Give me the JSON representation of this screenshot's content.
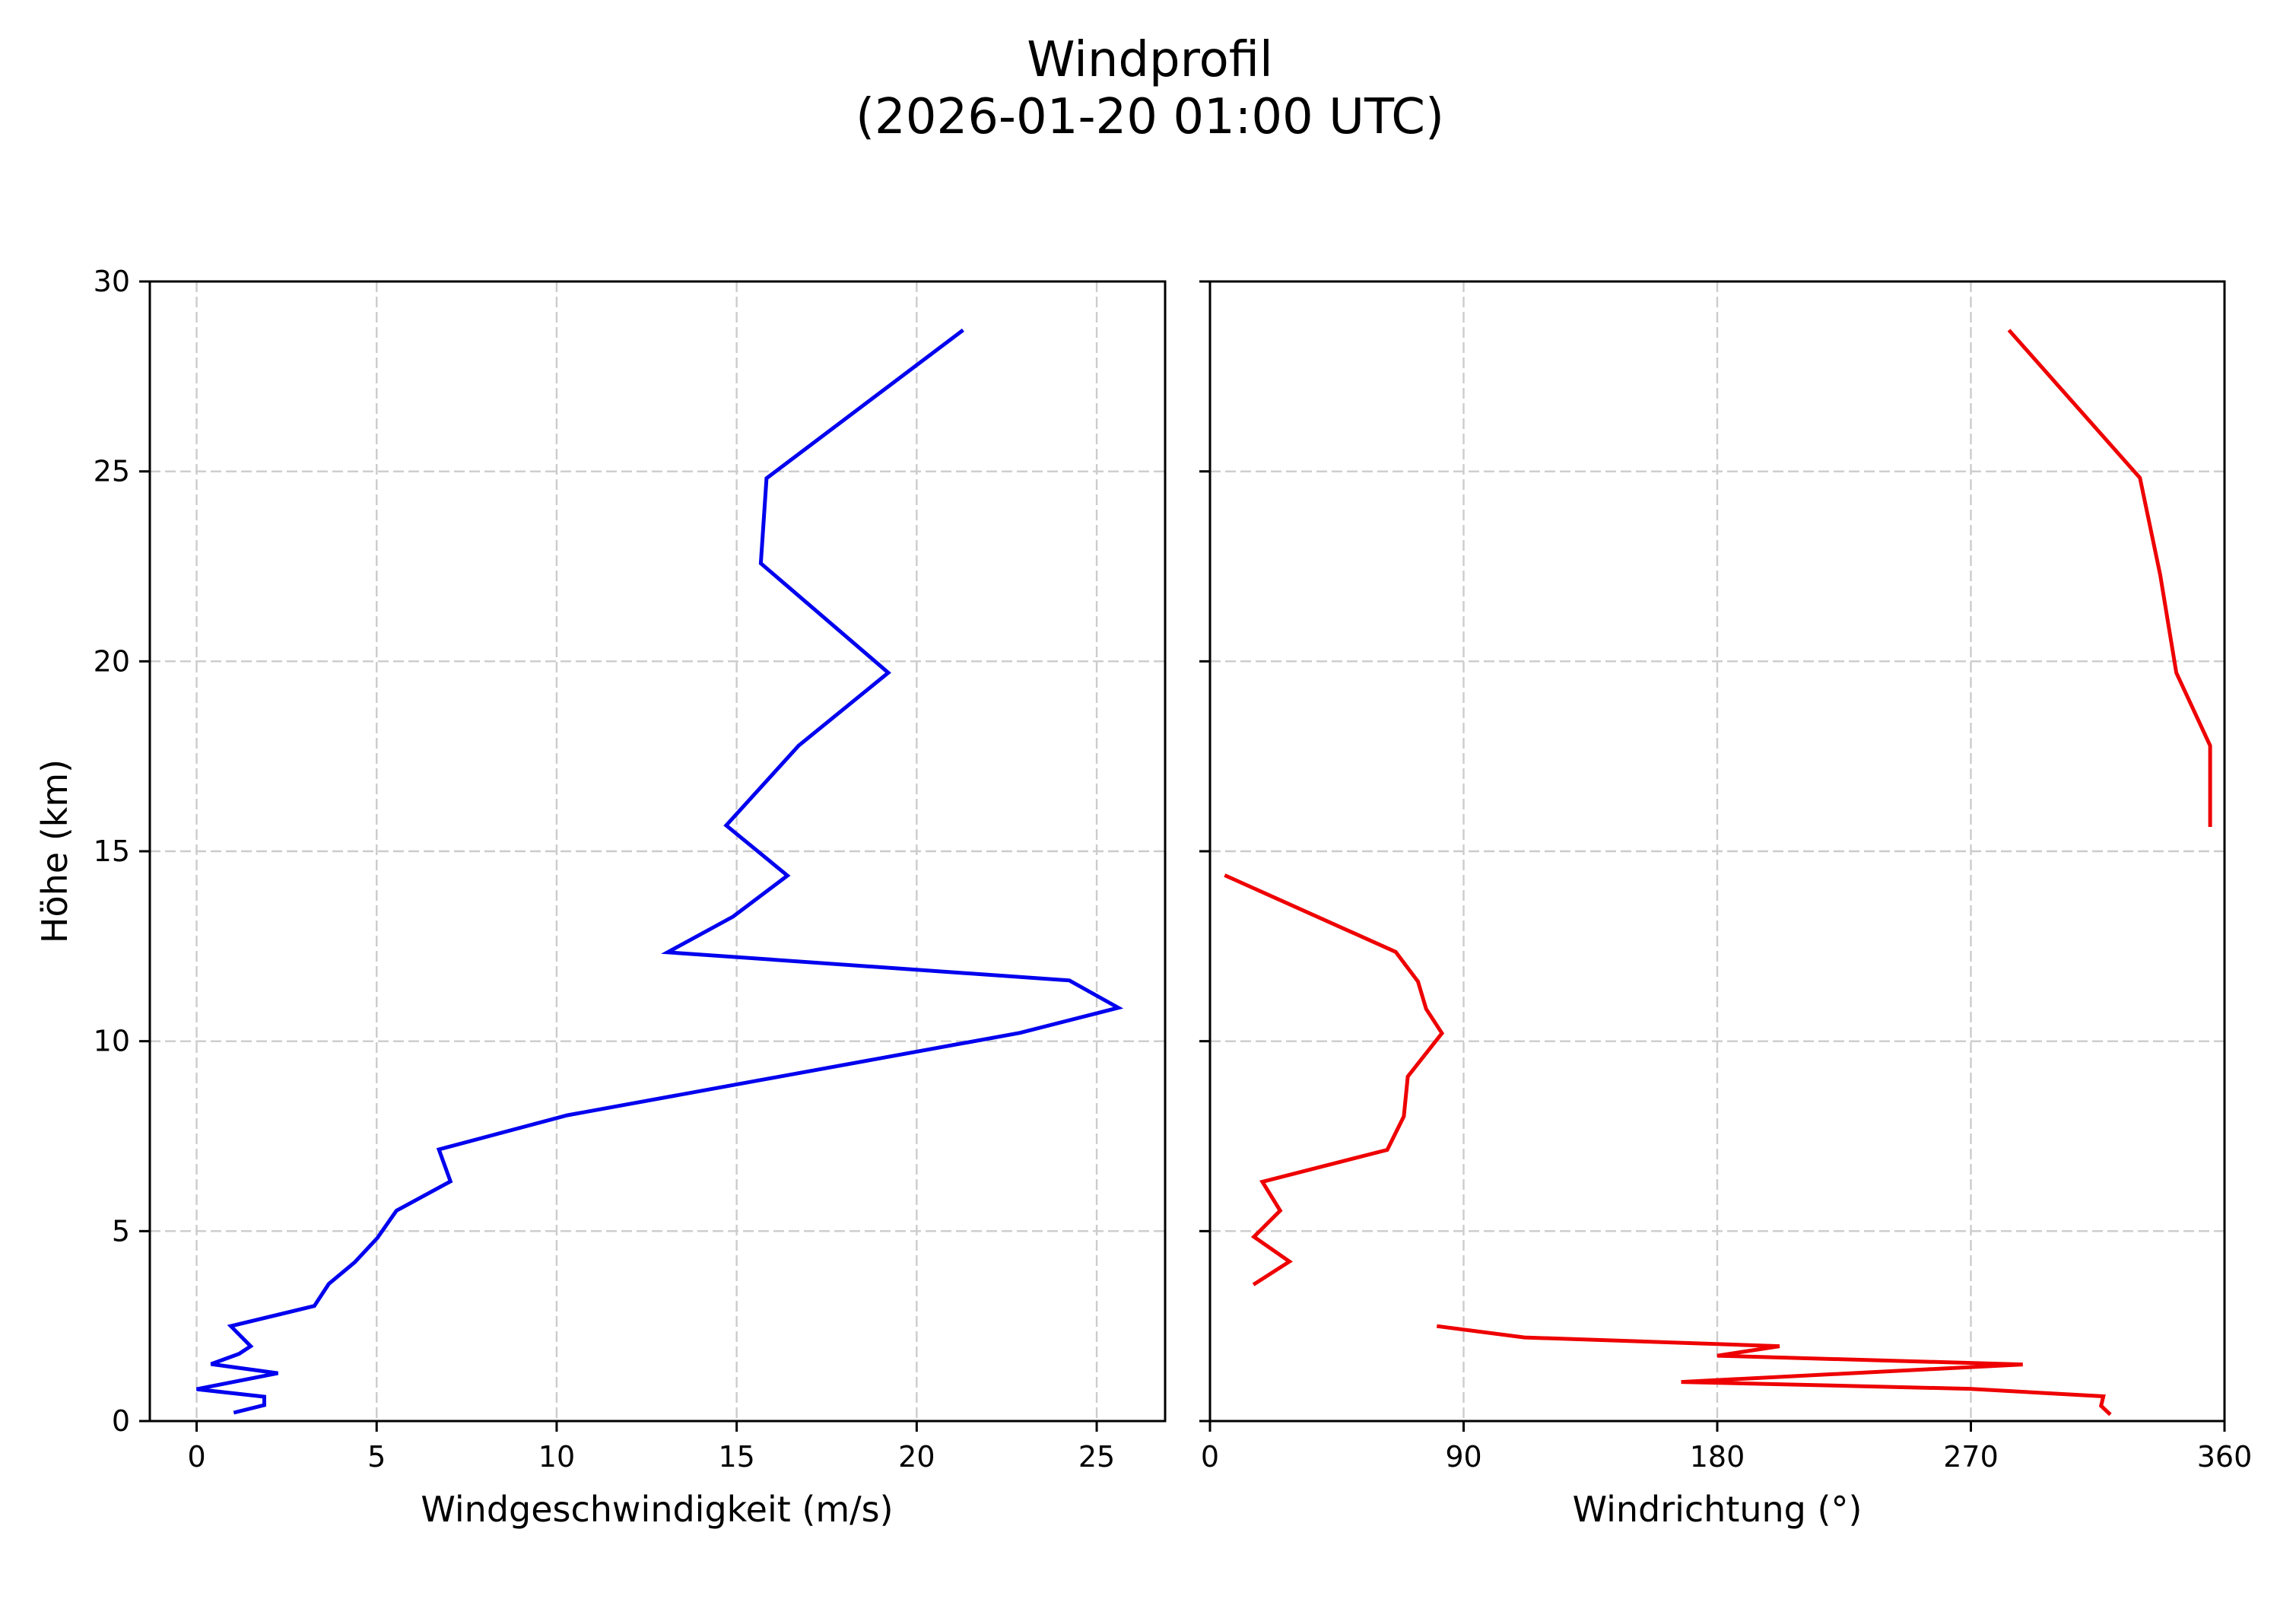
{
  "figure": {
    "title_line1": "Windprofil",
    "title_line2": "(2026-01-20 01:00 UTC)"
  },
  "chart_data": [
    {
      "type": "line",
      "panel": "left",
      "title": "Windprofil (2026-01-20 01:00 UTC)",
      "xlabel": "Windgeschwindigkeit (m/s)",
      "ylabel": "Höhe (km)",
      "xlim": [
        -1.3,
        26.9
      ],
      "ylim": [
        0,
        30
      ],
      "xticks": [
        0,
        5,
        10,
        15,
        20,
        25
      ],
      "yticks": [
        0,
        5,
        10,
        15,
        20,
        25,
        30
      ],
      "grid": true,
      "series": [
        {
          "name": "Windgeschwindigkeit",
          "color": "#0000ee",
          "points": [
            [
              1.03,
              0.22
            ],
            [
              1.88,
              0.42
            ],
            [
              1.88,
              0.64
            ],
            [
              0.0,
              0.84
            ],
            [
              2.26,
              1.26
            ],
            [
              0.4,
              1.5
            ],
            [
              1.18,
              1.77
            ],
            [
              1.5,
              1.97
            ],
            [
              0.95,
              2.5
            ],
            [
              3.27,
              3.03
            ],
            [
              3.67,
              3.61
            ],
            [
              4.39,
              4.18
            ],
            [
              5.02,
              4.82
            ],
            [
              5.55,
              5.54
            ],
            [
              7.05,
              6.31
            ],
            [
              6.73,
              7.15
            ],
            [
              10.3,
              8.05
            ],
            [
              15.8,
              9.0
            ],
            [
              22.87,
              10.22
            ],
            [
              25.6,
              10.88
            ],
            [
              24.24,
              11.6
            ],
            [
              13.08,
              12.34
            ],
            [
              14.9,
              13.28
            ],
            [
              16.41,
              14.36
            ],
            [
              14.71,
              15.68
            ],
            [
              16.72,
              17.78
            ],
            [
              19.21,
              19.7
            ],
            [
              15.67,
              22.58
            ],
            [
              15.83,
              24.82
            ],
            [
              21.29,
              28.72
            ]
          ]
        }
      ]
    },
    {
      "type": "line",
      "panel": "right",
      "xlabel": "Windrichtung (°)",
      "ylabel": "",
      "xlim": [
        0,
        360
      ],
      "ylim": [
        0,
        30
      ],
      "xticks": [
        0,
        90,
        180,
        270,
        360
      ],
      "yticks": [
        0,
        5,
        10,
        15,
        20,
        25,
        30
      ],
      "grid": true,
      "series": [
        {
          "name": "Windrichtung",
          "color": "#ee0000",
          "segments": [
            [
              [
                319.5,
                0.17
              ],
              [
                316.2,
                0.4
              ],
              [
                317.0,
                0.65
              ],
              [
                269.5,
                0.85
              ],
              [
                167.2,
                1.03
              ],
              [
                288.4,
                1.49
              ],
              [
                180.0,
                1.72
              ],
              [
                202.1,
                1.97
              ],
              [
                111.6,
                2.2
              ],
              [
                80.5,
                2.5
              ]
            ],
            [
              [
                15.4,
                3.59
              ],
              [
                28.2,
                4.2
              ],
              [
                15.6,
                4.85
              ],
              [
                24.9,
                5.54
              ],
              [
                18.6,
                6.3
              ],
              [
                62.9,
                7.14
              ],
              [
                68.8,
                8.02
              ],
              [
                70.2,
                9.07
              ],
              [
                82.3,
                10.21
              ],
              [
                76.7,
                10.85
              ],
              [
                73.8,
                11.57
              ],
              [
                65.9,
                12.35
              ],
              [
                5.2,
                14.37
              ]
            ],
            [
              [
                354.9,
                15.64
              ],
              [
                354.9,
                17.78
              ],
              [
                342.9,
                19.7
              ],
              [
                337.2,
                22.27
              ],
              [
                330.0,
                24.83
              ],
              [
                283.5,
                28.72
              ]
            ]
          ]
        }
      ]
    }
  ]
}
